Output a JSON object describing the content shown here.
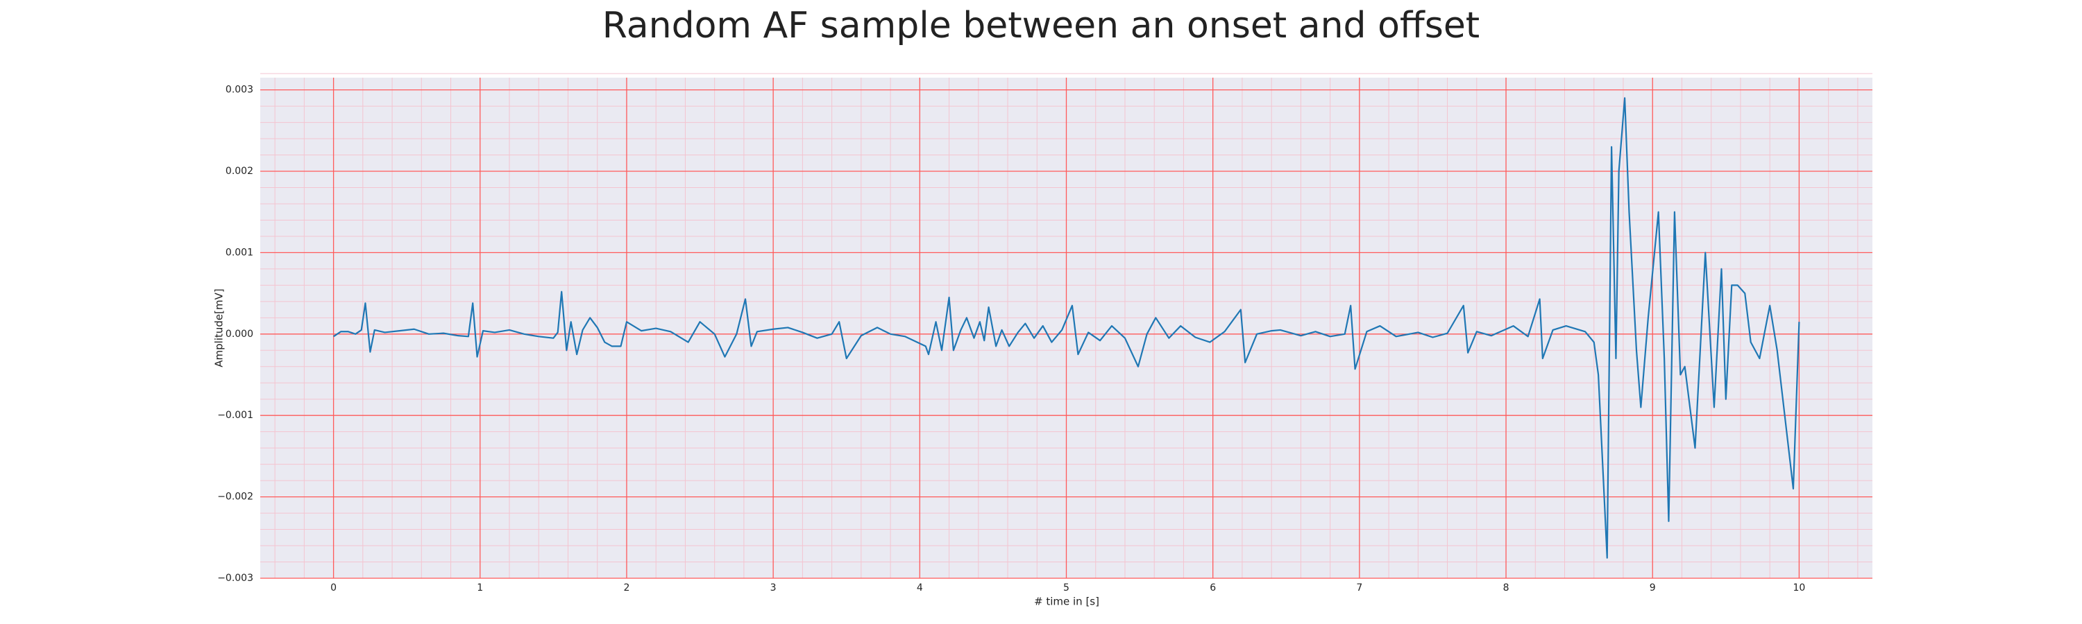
{
  "chart_data": {
    "type": "line",
    "title": "Random AF sample between an onset and offset",
    "xlabel": "# time in [s]",
    "ylabel": "Amplitude[mV]",
    "color": "#1f77b4",
    "grid": true,
    "grid_color": "#ff5a5a",
    "minor_grid_color": "#f4c4d0",
    "background": "#eaeaf2",
    "xlim": [
      -0.5,
      10.5
    ],
    "ylim": [
      -0.003,
      0.00315
    ],
    "xticks": [
      0,
      1,
      2,
      3,
      4,
      5,
      6,
      7,
      8,
      9,
      10
    ],
    "yticks": [
      {
        "value": -0.003,
        "label": "−0.003"
      },
      {
        "value": -0.002,
        "label": "−0.002"
      },
      {
        "value": -0.001,
        "label": "−0.001"
      },
      {
        "value": 0,
        "label": "0.000"
      },
      0.001,
      0.002,
      0.003
    ],
    "xminorticks": [
      -0.4,
      -0.2,
      0.2,
      0.4,
      0.6,
      0.8,
      1.2,
      1.4,
      1.6,
      1.8,
      2.2,
      2.4,
      2.6,
      2.8,
      3.2,
      3.4,
      3.6,
      3.8,
      4.2,
      4.4,
      4.6,
      4.8,
      5.2,
      5.4,
      5.6,
      5.8,
      6.2,
      6.4,
      6.6,
      6.8,
      7.2,
      7.4,
      7.6,
      7.8,
      8.2,
      8.4,
      8.6,
      8.8,
      9.2,
      9.4,
      9.6,
      9.8,
      10.2,
      10.4
    ],
    "yminorticks": [
      -0.0028,
      -0.0026,
      -0.0024,
      -0.0022,
      -0.0018,
      -0.0016,
      -0.0014,
      -0.0012,
      -0.0008,
      -0.0006,
      -0.0004,
      -0.0002,
      0.0002,
      0.0004,
      0.0006,
      0.0008,
      0.0012,
      0.0014,
      0.0016,
      0.0018,
      0.0022,
      0.0024,
      0.0026,
      0.0028,
      0.0032
    ],
    "x": [
      0,
      0.05,
      0.1,
      0.15,
      0.19,
      0.217,
      0.25,
      0.28,
      0.35,
      0.45,
      0.55,
      0.65,
      0.75,
      0.85,
      0.92,
      0.95,
      0.98,
      1.02,
      1.1,
      1.2,
      1.3,
      1.4,
      1.5,
      1.53,
      1.556,
      1.59,
      1.62,
      1.66,
      1.7,
      1.75,
      1.8,
      1.85,
      1.9,
      1.96,
      2.0,
      2.1,
      2.2,
      2.3,
      2.42,
      2.5,
      2.6,
      2.67,
      2.75,
      2.81,
      2.85,
      2.89,
      3.0,
      3.1,
      3.2,
      3.3,
      3.4,
      3.45,
      3.5,
      3.6,
      3.71,
      3.8,
      3.9,
      4.04,
      4.06,
      4.11,
      4.15,
      4.2,
      4.23,
      4.28,
      4.32,
      4.37,
      4.41,
      4.44,
      4.47,
      4.52,
      4.56,
      4.61,
      4.67,
      4.72,
      4.78,
      4.84,
      4.9,
      4.97,
      5.04,
      5.08,
      5.15,
      5.23,
      5.31,
      5.4,
      5.49,
      5.55,
      5.61,
      5.7,
      5.78,
      5.88,
      5.98,
      6.08,
      6.19,
      6.22,
      6.3,
      6.4,
      6.46,
      6.6,
      6.7,
      6.8,
      6.9,
      6.94,
      6.97,
      7.05,
      7.14,
      7.25,
      7.4,
      7.5,
      7.6,
      7.71,
      7.74,
      7.8,
      7.9,
      8.05,
      8.15,
      8.23,
      8.25,
      8.32,
      8.41,
      8.54,
      8.6,
      8.63,
      8.69,
      8.72,
      8.75,
      8.77,
      8.81,
      8.84,
      8.89,
      8.92,
      8.97,
      9.04,
      9.08,
      9.11,
      9.15,
      9.19,
      9.22,
      9.29,
      9.36,
      9.42,
      9.47,
      9.5,
      9.54,
      9.58,
      9.63,
      9.67,
      9.73,
      9.8,
      9.85,
      9.96,
      10.0
    ],
    "values": [
      -3e-05,
      3e-05,
      3e-05,
      0.0,
      5e-05,
      0.00038,
      -0.00022,
      5e-05,
      2e-05,
      4e-05,
      6e-05,
      0.0,
      1e-05,
      -2e-05,
      -3e-05,
      0.00038,
      -0.00028,
      4e-05,
      2e-05,
      5e-05,
      0.0,
      -3e-05,
      -5e-05,
      2e-05,
      0.00052,
      -0.0002,
      0.00015,
      -0.00025,
      5e-05,
      0.0002,
      8e-05,
      -0.0001,
      -0.00015,
      -0.00015,
      0.00015,
      4e-05,
      7e-05,
      3e-05,
      -0.0001,
      0.00015,
      0.0,
      -0.00028,
      0.0,
      0.00043,
      -0.00015,
      3e-05,
      6e-05,
      8e-05,
      2e-05,
      -5e-05,
      0.0,
      0.00015,
      -0.0003,
      -2e-05,
      8e-05,
      0.0,
      -3e-05,
      -0.00015,
      -0.00025,
      0.00015,
      -0.0002,
      0.00045,
      -0.0002,
      5e-05,
      0.0002,
      -5e-05,
      0.00015,
      -8e-05,
      0.00033,
      -0.00015,
      5e-05,
      -0.00015,
      2e-05,
      0.00013,
      -5e-05,
      0.0001,
      -0.0001,
      5e-05,
      0.00035,
      -0.00025,
      2e-05,
      -8e-05,
      0.0001,
      -5e-05,
      -0.0004,
      0.0,
      0.0002,
      -5e-05,
      0.0001,
      -4e-05,
      -0.0001,
      3e-05,
      0.0003,
      -0.00035,
      0.0,
      4e-05,
      5e-05,
      -2e-05,
      3e-05,
      -3e-05,
      0.0,
      0.00035,
      -0.00043,
      3e-05,
      0.0001,
      -3e-05,
      2e-05,
      -4e-05,
      1e-05,
      0.00035,
      -0.00023,
      3e-05,
      -2e-05,
      0.0001,
      -3e-05,
      0.00043,
      -0.0003,
      5e-05,
      0.0001,
      3e-05,
      -0.0001,
      -0.0005,
      -0.00275,
      0.0023,
      -0.0003,
      0.002,
      0.0029,
      0.0015,
      -0.0002,
      -0.0009,
      0.0002,
      0.0015,
      -0.0003,
      -0.0023,
      0.0015,
      -0.0005,
      -0.0004,
      -0.0014,
      0.001,
      -0.0009,
      0.0008,
      -0.0008,
      0.0006,
      0.0006,
      0.0005,
      -0.0001,
      -0.0003,
      0.00035,
      -0.0002,
      -0.0019,
      0.00015
    ]
  }
}
